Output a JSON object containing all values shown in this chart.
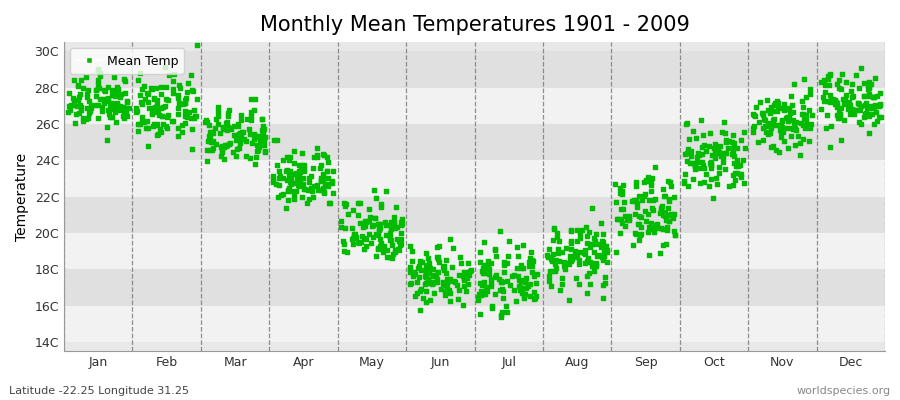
{
  "title": "Monthly Mean Temperatures 1901 - 2009",
  "ylabel": "Temperature",
  "xlabel": "",
  "footnote_left": "Latitude -22.25 Longitude 31.25",
  "footnote_right": "worldspecies.org",
  "legend_label": "Mean Temp",
  "marker_color": "#00bb00",
  "marker_size": 5,
  "background_color": "#ffffff",
  "plot_bg_color": "#e8e8e8",
  "band_color_light": "#f2f2f2",
  "band_color_dark": "#e0e0e0",
  "yticks": [
    14,
    16,
    18,
    20,
    22,
    24,
    26,
    28,
    30
  ],
  "ytick_labels": [
    "14C",
    "16C",
    "18C",
    "20C",
    "22C",
    "24C",
    "26C",
    "28C",
    "30C"
  ],
  "ylim": [
    13.5,
    30.5
  ],
  "months": [
    "Jan",
    "Feb",
    "Mar",
    "Apr",
    "May",
    "Jun",
    "Jul",
    "Aug",
    "Sep",
    "Oct",
    "Nov",
    "Dec"
  ],
  "month_means": [
    27.2,
    26.8,
    25.3,
    23.0,
    20.2,
    17.7,
    17.4,
    18.7,
    21.2,
    24.0,
    26.2,
    27.3
  ],
  "month_stds": [
    0.7,
    0.9,
    0.8,
    0.8,
    0.9,
    0.8,
    0.8,
    0.9,
    1.0,
    1.0,
    0.9,
    0.8
  ],
  "n_years": 109,
  "title_fontsize": 15,
  "axis_label_fontsize": 10,
  "tick_fontsize": 9,
  "grid_color": "#666666",
  "grid_linestyle": "--",
  "grid_linewidth": 0.9
}
